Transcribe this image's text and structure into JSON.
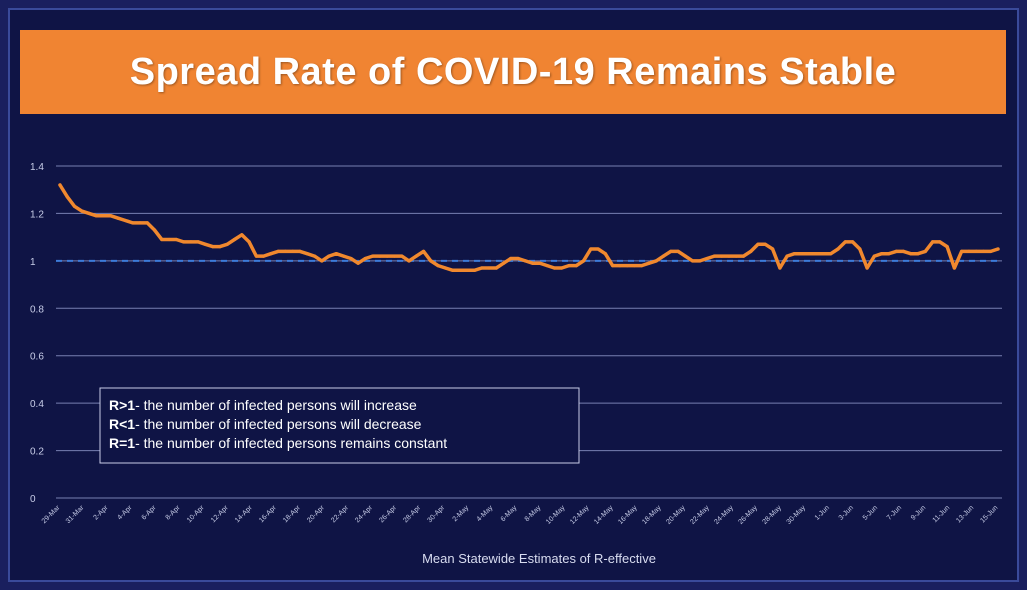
{
  "title": "Spread Rate of COVID-19 Remains Stable",
  "colors": {
    "banner": "#f08432",
    "background": "#0f1445",
    "line": "#f0882e",
    "grid": "#9aa3d6",
    "reference": "#3d7bd9"
  },
  "chart_data": {
    "type": "line",
    "title": "Spread Rate of COVID-19 Remains Stable",
    "xlabel": "Mean Statewide Estimates of R-effective",
    "ylabel": "",
    "ylim": [
      0,
      1.4
    ],
    "yticks": [
      "0",
      "0.2",
      "0.4",
      "0.6",
      "0.8",
      "1",
      "1.2",
      "1.4"
    ],
    "grid": true,
    "reference_line": 1,
    "xticks": [
      "29-Mar",
      "31-Mar",
      "2-Apr",
      "4-Apr",
      "6-Apr",
      "8-Apr",
      "10-Apr",
      "12-Apr",
      "14-Apr",
      "16-Apr",
      "18-Apr",
      "20-Apr",
      "22-Apr",
      "24-Apr",
      "26-Apr",
      "28-Apr",
      "30-Apr",
      "2-May",
      "4-May",
      "6-May",
      "8-May",
      "10-May",
      "12-May",
      "14-May",
      "16-May",
      "18-May",
      "20-May",
      "22-May",
      "24-May",
      "26-May",
      "28-May",
      "30-May",
      "1-Jun",
      "3-Jun",
      "5-Jun",
      "7-Jun",
      "9-Jun",
      "11-Jun",
      "13-Jun",
      "15-Jun"
    ],
    "series": [
      {
        "values": [
          1.32,
          1.27,
          1.23,
          1.21,
          1.2,
          1.19,
          1.19,
          1.19,
          1.18,
          1.17,
          1.16,
          1.16,
          1.16,
          1.13,
          1.09,
          1.09,
          1.09,
          1.08,
          1.08,
          1.08,
          1.07,
          1.06,
          1.06,
          1.07,
          1.09,
          1.11,
          1.08,
          1.02,
          1.02,
          1.03,
          1.04,
          1.04,
          1.04,
          1.04,
          1.03,
          1.02,
          1.0,
          1.02,
          1.03,
          1.02,
          1.01,
          0.99,
          1.01,
          1.02,
          1.02,
          1.02,
          1.02,
          1.02,
          1.0,
          1.02,
          1.04,
          1.0,
          0.98,
          0.97,
          0.96,
          0.96,
          0.96,
          0.96,
          0.97,
          0.97,
          0.97,
          0.99,
          1.01,
          1.01,
          1.0,
          0.99,
          0.99,
          0.98,
          0.97,
          0.97,
          0.98,
          0.98,
          1.0,
          1.05,
          1.05,
          1.03,
          0.98,
          0.98,
          0.98,
          0.98,
          0.98,
          0.99,
          1.0,
          1.02,
          1.04,
          1.04,
          1.02,
          1.0,
          1.0,
          1.01,
          1.02,
          1.02,
          1.02,
          1.02,
          1.02,
          1.04,
          1.07,
          1.07,
          1.05,
          0.97,
          1.02,
          1.03,
          1.03,
          1.03,
          1.03,
          1.03,
          1.03,
          1.05,
          1.08,
          1.08,
          1.05,
          0.97,
          1.02,
          1.03,
          1.03,
          1.04,
          1.04,
          1.03,
          1.03,
          1.04,
          1.08,
          1.08,
          1.06,
          0.97,
          1.04,
          1.04,
          1.04,
          1.04,
          1.04,
          1.05
        ]
      }
    ],
    "legend": [
      {
        "bold": "R>1",
        "text": "- the number of infected persons will increase"
      },
      {
        "bold": "R<1",
        "text": "- the number of infected persons will decrease"
      },
      {
        "bold": "R=1",
        "text": "- the number of infected persons remains constant"
      }
    ]
  }
}
